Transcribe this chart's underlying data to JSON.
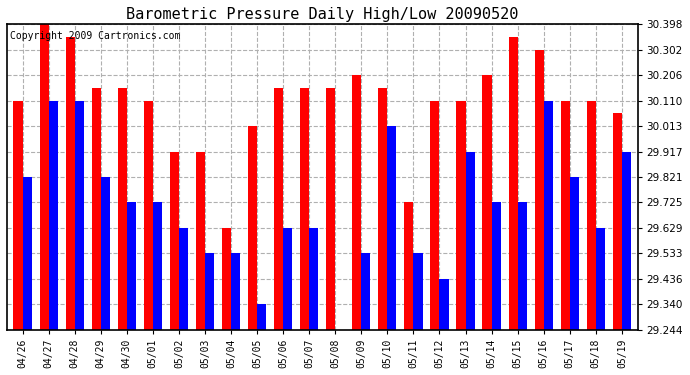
{
  "title": "Barometric Pressure Daily High/Low 20090520",
  "copyright": "Copyright 2009 Cartronics.com",
  "dates": [
    "04/26",
    "04/27",
    "04/28",
    "04/29",
    "04/30",
    "05/01",
    "05/02",
    "05/03",
    "05/04",
    "05/05",
    "05/06",
    "05/07",
    "05/08",
    "05/09",
    "05/10",
    "05/11",
    "05/12",
    "05/13",
    "05/14",
    "05/15",
    "05/16",
    "05/17",
    "05/18",
    "05/19"
  ],
  "highs": [
    30.11,
    30.398,
    30.35,
    30.158,
    30.158,
    30.11,
    29.917,
    29.917,
    29.629,
    30.013,
    30.158,
    30.158,
    30.158,
    30.206,
    30.158,
    29.725,
    30.11,
    30.11,
    30.206,
    30.35,
    30.302,
    30.11,
    30.11,
    30.062
  ],
  "lows": [
    29.821,
    30.11,
    30.11,
    29.821,
    29.725,
    29.725,
    29.629,
    29.533,
    29.533,
    29.34,
    29.629,
    29.629,
    29.244,
    29.533,
    30.013,
    29.533,
    29.436,
    29.917,
    29.725,
    29.725,
    30.11,
    29.821,
    29.629,
    29.917
  ],
  "ymin": 29.244,
  "ymax": 30.398,
  "yticks": [
    29.244,
    29.34,
    29.436,
    29.533,
    29.629,
    29.725,
    29.821,
    29.917,
    30.013,
    30.11,
    30.206,
    30.302,
    30.398
  ],
  "high_color": "#ff0000",
  "low_color": "#0000ff",
  "bg_color": "#ffffff",
  "plot_bg_color": "#ffffff",
  "grid_color": "#b0b0b0",
  "title_fontsize": 11,
  "copyright_fontsize": 7,
  "bar_width": 0.35
}
